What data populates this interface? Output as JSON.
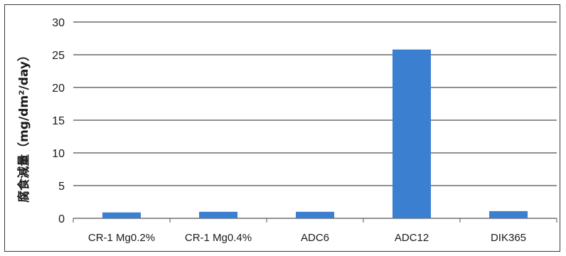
{
  "chart_data": {
    "type": "bar",
    "categories": [
      "CR-1 Mg0.2%",
      "CR-1 Mg0.4%",
      "ADC6",
      "ADC12",
      "DIK365"
    ],
    "values": [
      0.9,
      1.0,
      1.0,
      25.8,
      1.1
    ],
    "ylabel": "腐食減量（mg/dm²/day）",
    "ylim": [
      0,
      30
    ],
    "yticks": [
      0,
      5,
      10,
      15,
      20,
      25,
      30
    ],
    "grid": true,
    "legend": "none",
    "colors": {
      "bar": "#3a7fd0",
      "grid": "#222222",
      "axis": "#555555"
    }
  }
}
